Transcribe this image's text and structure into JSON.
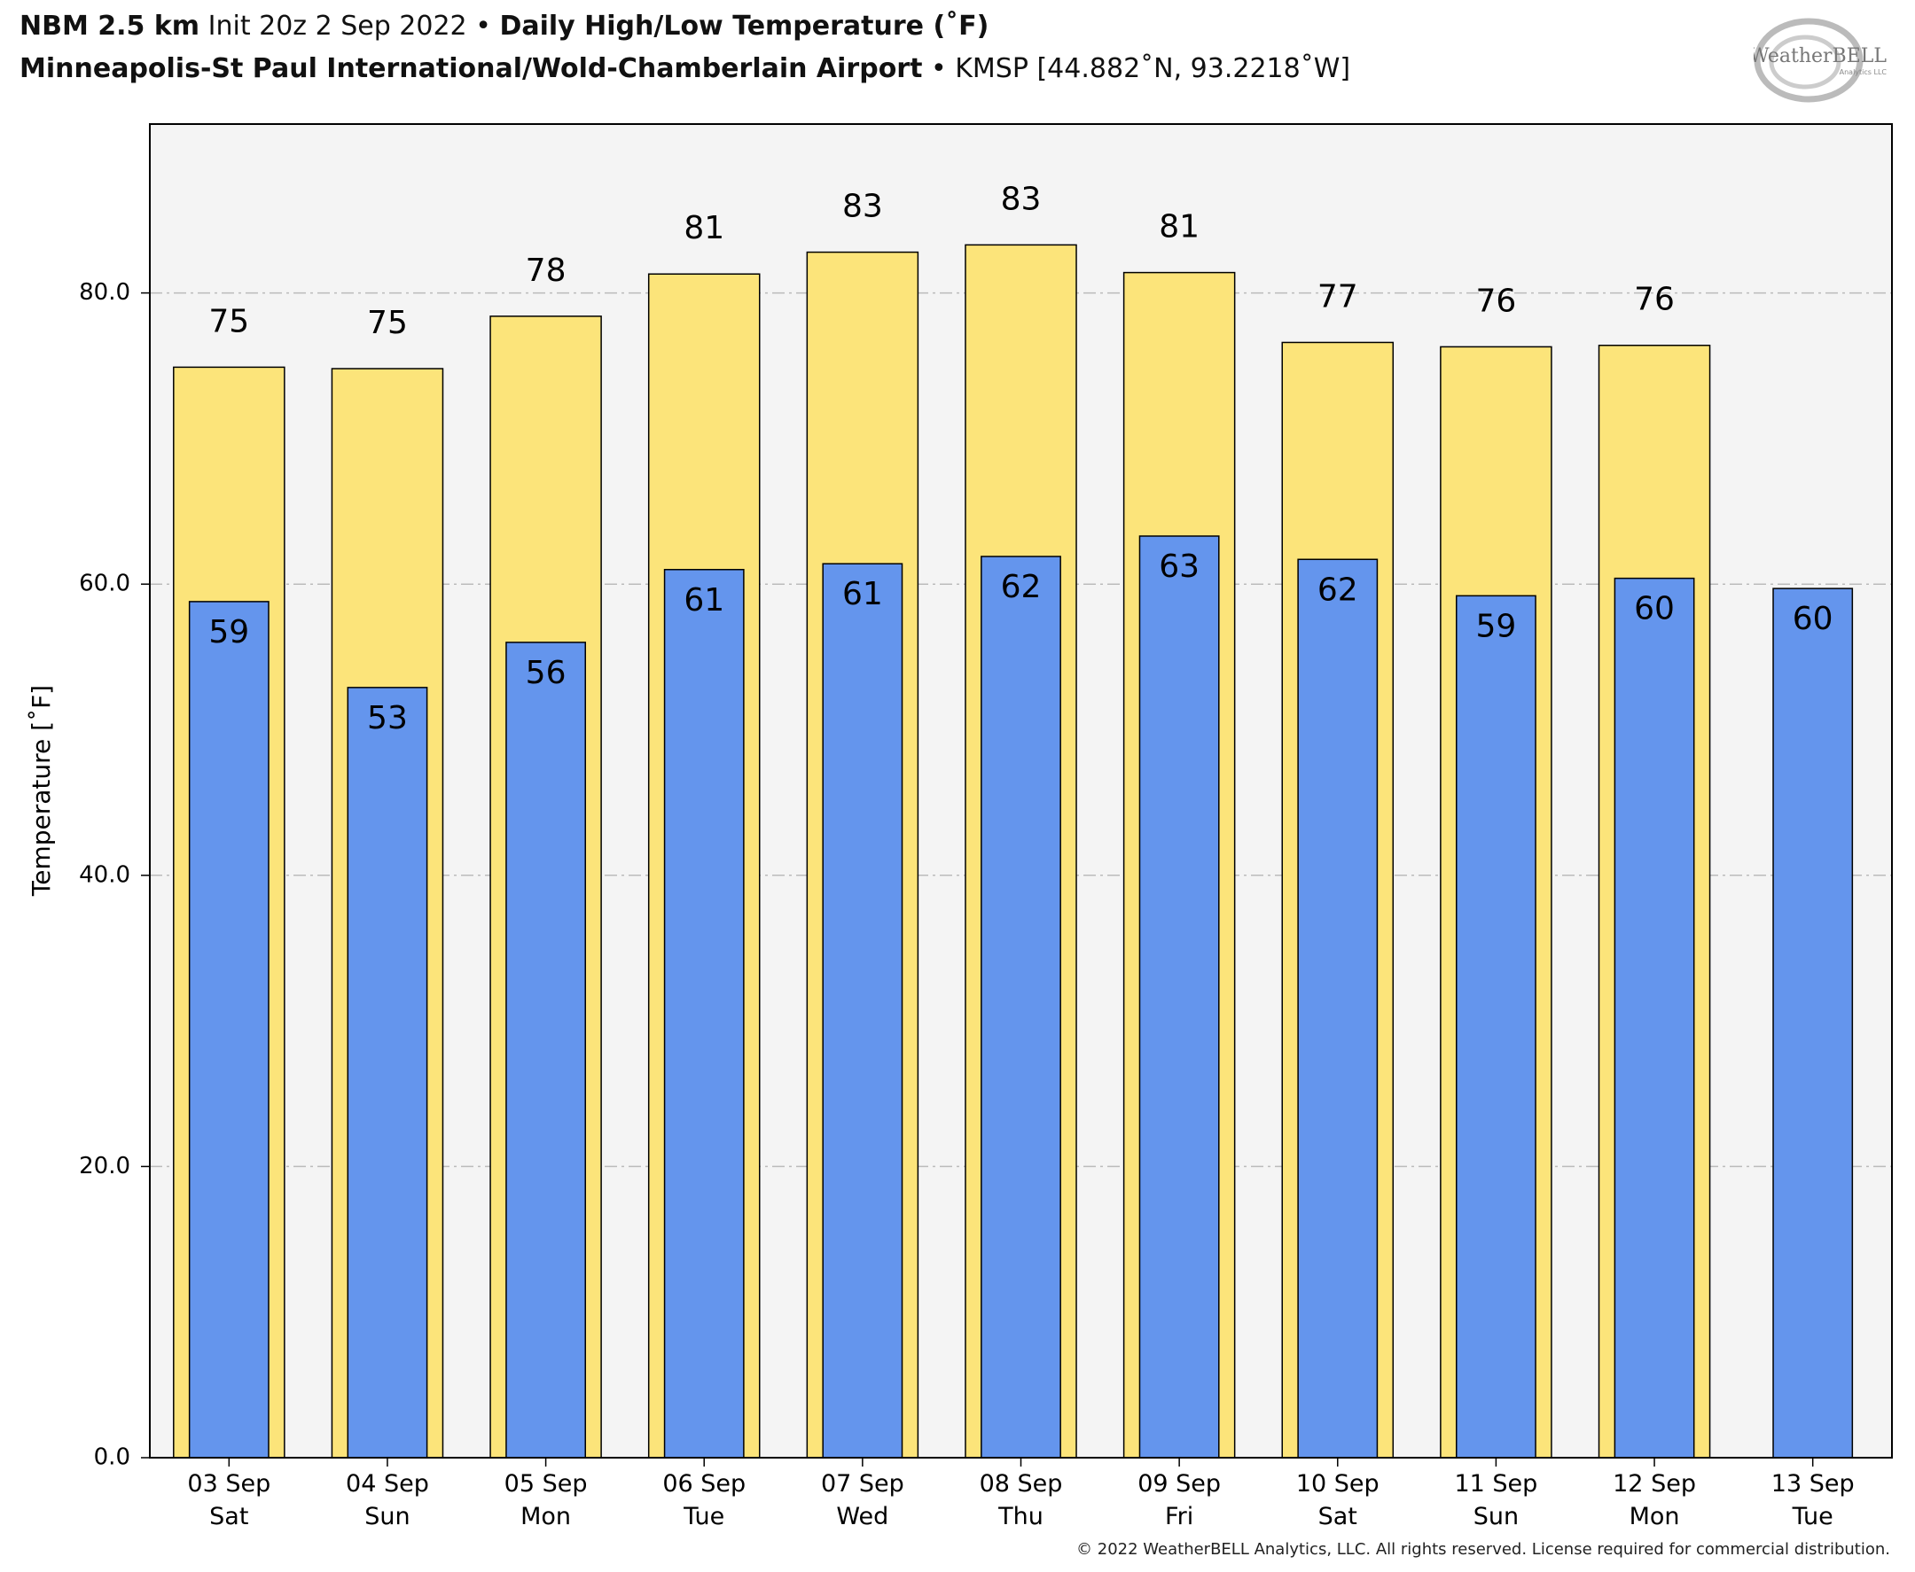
{
  "chart_data": {
    "type": "bar",
    "title_parts": [
      "NBM 2.5 km",
      "Init 20z 2 Sep 2022",
      "•",
      "Daily High/Low Temperature (˚F)"
    ],
    "subtitle_parts": [
      "Minneapolis-St Paul International/Wold-Chamberlain Airport",
      "•",
      "KMSP [44.882˚N, 93.2218˚W]"
    ],
    "logo": "WeatherBELL",
    "logo_sub": "Analytics LLC",
    "y_label": "Temperature [˚F]",
    "footnote": "© 2022 WeatherBELL Analytics, LLC. All rights reserved. License required for commercial distribution.",
    "categories": [
      "03 Sep",
      "04 Sep",
      "05 Sep",
      "06 Sep",
      "07 Sep",
      "08 Sep",
      "09 Sep",
      "10 Sep",
      "11 Sep",
      "12 Sep",
      "13 Sep"
    ],
    "category_days": [
      "Sat",
      "Sun",
      "Mon",
      "Tue",
      "Wed",
      "Thu",
      "Fri",
      "Sat",
      "Sun",
      "Mon",
      "Tue"
    ],
    "series": [
      {
        "color": "#fce47a",
        "values": [
          74.9,
          74.8,
          78.4,
          81.3,
          82.8,
          83.3,
          81.4,
          76.6,
          76.3,
          76.4,
          null
        ],
        "value_labels": [
          "75",
          "75",
          "78",
          "81",
          "83",
          "83",
          "81",
          "77",
          "76",
          "76",
          null
        ]
      },
      {
        "color": "#6495ed",
        "values": [
          58.8,
          52.9,
          56.0,
          61.0,
          61.4,
          61.9,
          63.3,
          61.7,
          59.2,
          60.4,
          59.7
        ],
        "value_labels": [
          "59",
          "53",
          "56",
          "61",
          "61",
          "62",
          "63",
          "62",
          "59",
          "60",
          "60"
        ]
      }
    ],
    "ylim": [
      0,
      91.6
    ],
    "yticks": [
      {
        "value": 0,
        "label": "0.0"
      },
      {
        "value": 20,
        "label": "20.0"
      },
      {
        "value": 40,
        "label": "40.0"
      },
      {
        "value": 60,
        "label": "60.0"
      },
      {
        "value": 80,
        "label": "80.0"
      }
    ],
    "grid": true
  }
}
